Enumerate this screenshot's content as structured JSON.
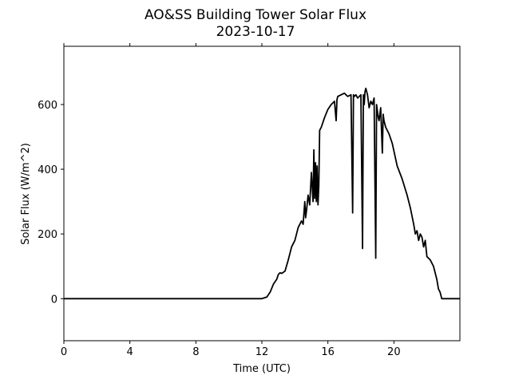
{
  "chart_data": {
    "type": "line",
    "title": "AO&SS Building Tower Solar Flux",
    "subtitle": "2023-10-17",
    "xlabel": "Time (UTC)",
    "ylabel": "Solar Flux (W/m^2)",
    "xlim": [
      0,
      24
    ],
    "ylim": [
      -130,
      780
    ],
    "xticks": [
      0,
      4,
      8,
      12,
      16,
      20
    ],
    "yticks": [
      0,
      200,
      400,
      600
    ],
    "grid": false,
    "legend": "none",
    "line_color": "#000000",
    "series": [
      {
        "x": [
          0,
          12.0,
          12.3,
          12.5,
          12.7,
          12.9,
          13.0,
          13.1,
          13.2,
          13.4,
          13.6,
          13.8,
          14.0,
          14.2,
          14.4,
          14.5,
          14.6,
          14.65,
          14.7,
          14.8,
          14.9,
          15.0,
          15.1,
          15.15,
          15.2,
          15.25,
          15.3,
          15.35,
          15.4,
          15.45,
          15.5,
          15.6,
          15.7,
          15.8,
          16.0,
          16.2,
          16.4,
          16.5,
          16.55,
          16.6,
          16.8,
          17.0,
          17.2,
          17.4,
          17.5,
          17.55,
          17.6,
          17.7,
          17.8,
          17.9,
          18.0,
          18.1,
          18.15,
          18.2,
          18.25,
          18.3,
          18.4,
          18.5,
          18.6,
          18.7,
          18.8,
          18.9,
          18.95,
          19.0,
          19.05,
          19.1,
          19.2,
          19.3,
          19.35,
          19.4,
          19.5,
          19.7,
          19.9,
          20.2,
          20.5,
          20.8,
          21.0,
          21.2,
          21.3,
          21.4,
          21.5,
          21.6,
          21.7,
          21.8,
          21.9,
          22.0,
          22.2,
          22.3,
          22.4,
          22.5,
          22.6,
          22.7,
          22.8,
          22.9,
          23.0,
          23.2,
          24.0
        ],
        "y": [
          0,
          0,
          5,
          20,
          45,
          60,
          75,
          80,
          78,
          85,
          120,
          160,
          180,
          220,
          240,
          230,
          300,
          250,
          270,
          320,
          290,
          390,
          300,
          460,
          310,
          420,
          300,
          410,
          290,
          350,
          520,
          530,
          545,
          560,
          585,
          600,
          610,
          550,
          615,
          625,
          630,
          635,
          625,
          630,
          265,
          630,
          625,
          630,
          620,
          625,
          630,
          155,
          630,
          600,
          640,
          650,
          630,
          590,
          610,
          600,
          620,
          125,
          600,
          580,
          560,
          550,
          590,
          450,
          570,
          550,
          530,
          510,
          480,
          410,
          370,
          320,
          280,
          230,
          200,
          210,
          180,
          200,
          190,
          160,
          180,
          130,
          120,
          110,
          100,
          80,
          60,
          30,
          20,
          0,
          0,
          0,
          0
        ]
      }
    ]
  }
}
